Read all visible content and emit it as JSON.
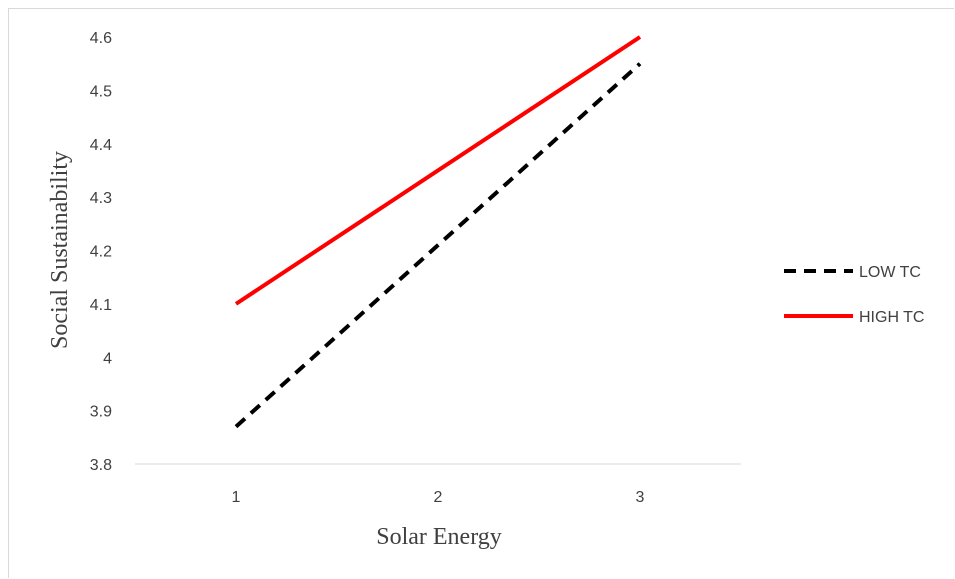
{
  "chart_data": {
    "type": "line",
    "title": "",
    "xlabel": "Solar Energy",
    "ylabel": "Social Sustainability",
    "categories": [
      "1",
      "2",
      "3"
    ],
    "x": [
      1,
      2,
      3
    ],
    "ylim": [
      3.8,
      4.6
    ],
    "yticks": [
      "3.8",
      "3.9",
      "4",
      "4.1",
      "4.2",
      "4.3",
      "4.4",
      "4.5",
      "4.6"
    ],
    "grid": false,
    "legend_position": "right",
    "series": [
      {
        "name": "LOW TC",
        "values": [
          3.87,
          4.21,
          4.55
        ],
        "color": "#000000",
        "style": "dashed"
      },
      {
        "name": "HIGH TC",
        "values": [
          4.1,
          4.35,
          4.6
        ],
        "color": "#ff0000",
        "style": "solid"
      }
    ]
  }
}
